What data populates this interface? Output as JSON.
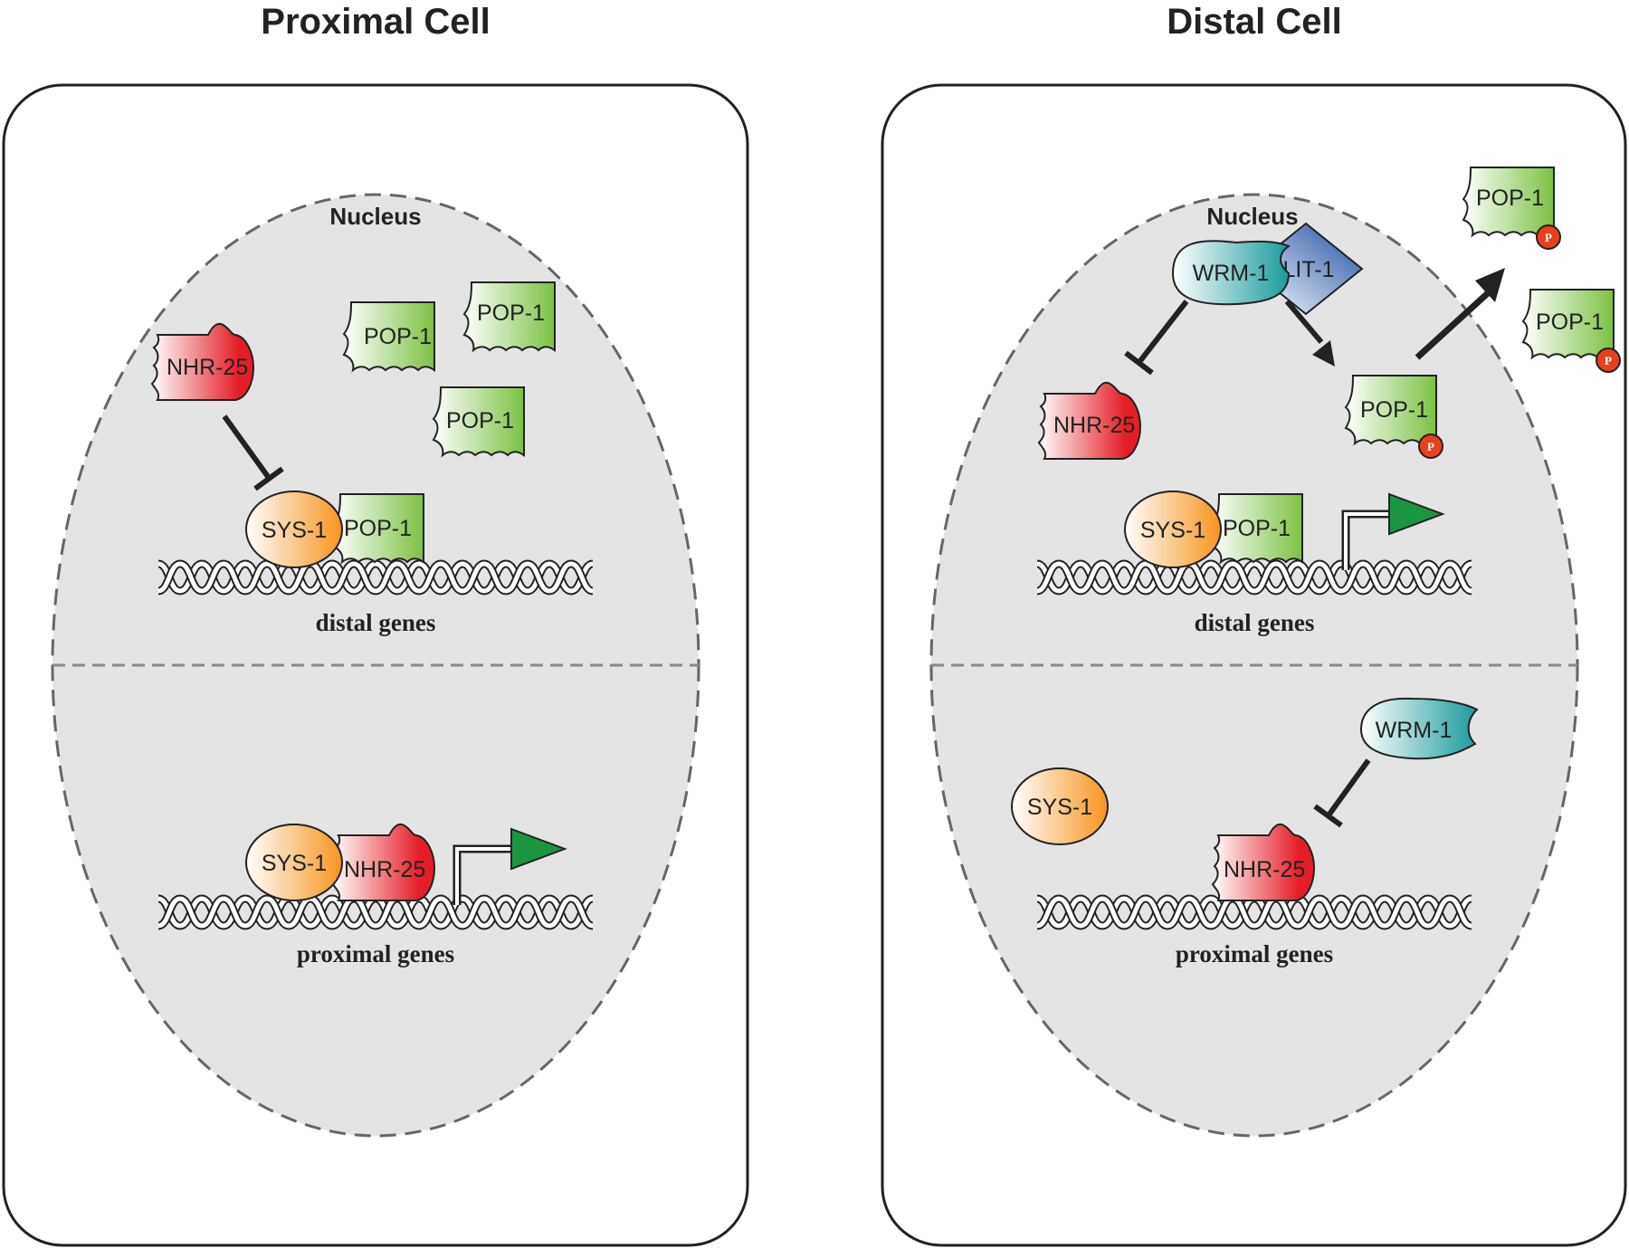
{
  "panels": [
    {
      "title": "Proximal Cell",
      "nucleus_label": "Nucleus",
      "upper_gene_label": "distal genes",
      "lower_gene_label": "proximal genes",
      "proteins": {
        "nhr25_free": "NHR-25",
        "pop1_a": "POP-1",
        "pop1_b": "POP-1",
        "pop1_c": "POP-1",
        "sys1_upper": "SYS-1",
        "pop1_upper": "POP-1",
        "sys1_lower": "SYS-1",
        "nhr25_lower": "NHR-25"
      }
    },
    {
      "title": "Distal Cell",
      "nucleus_label": "Nucleus",
      "upper_gene_label": "distal genes",
      "lower_gene_label": "proximal genes",
      "proteins": {
        "wrm1_upper": "WRM-1",
        "lit1": "LIT-1",
        "nhr25_free": "NHR-25",
        "pop1_phospho_nuclear": "POP-1",
        "pop1_out_a": "POP-1",
        "pop1_out_b": "POP-1",
        "sys1_upper": "SYS-1",
        "pop1_upper": "POP-1",
        "wrm1_lower": "WRM-1",
        "sys1_free": "SYS-1",
        "nhr25_lower": "NHR-25"
      },
      "phospho_mark": "P"
    }
  ],
  "colors": {
    "cell_outline": "#222222",
    "nucleus_fill": "#e4e4e4",
    "nucleus_border": "#666666",
    "pop1_green": "#7cc142",
    "nhr25_red": "#e41e26",
    "sys1_orange": "#f7941d",
    "wrm1_teal": "#1a9b9b",
    "lit1_blue": "#1b4fa3",
    "arrow_green": "#1a9641"
  }
}
